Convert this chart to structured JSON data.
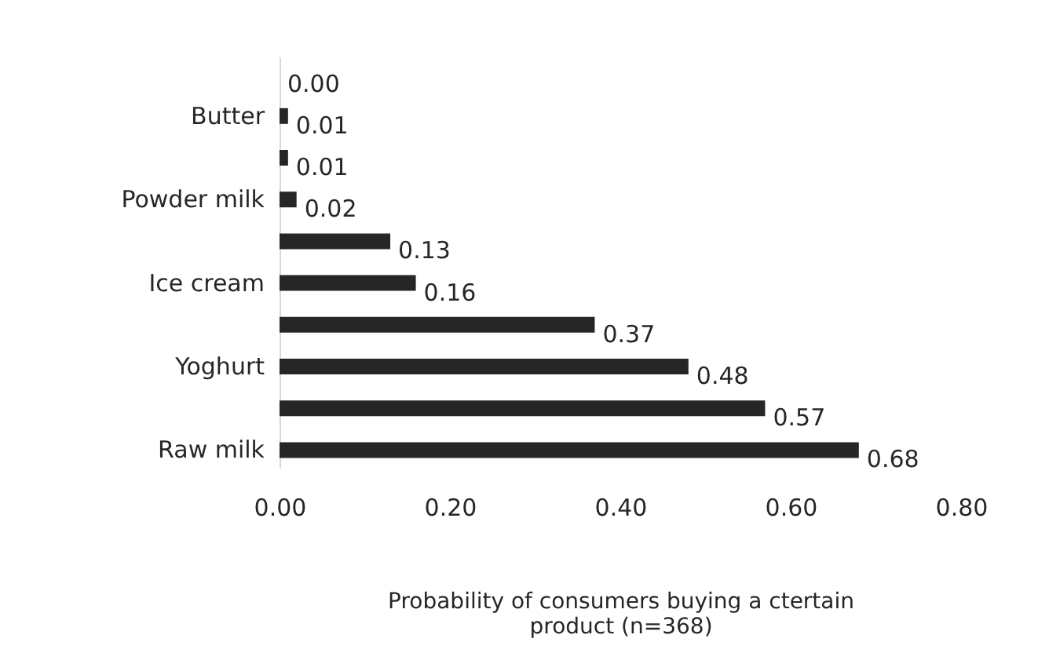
{
  "chart_data": {
    "type": "bar",
    "orientation": "horizontal",
    "categories": [
      null,
      "Butter",
      null,
      "Powder milk",
      null,
      "Ice cream",
      null,
      "Yoghurt",
      null,
      "Raw milk"
    ],
    "values": [
      0.0,
      0.01,
      0.01,
      0.02,
      0.13,
      0.16,
      0.37,
      0.48,
      0.57,
      0.68
    ],
    "value_labels": [
      "0.00",
      "0.01",
      "0.01",
      "0.02",
      "0.13",
      "0.16",
      "0.37",
      "0.48",
      "0.57",
      "0.68"
    ],
    "color": "#262626",
    "xlim": [
      0,
      0.8
    ],
    "xticks": [
      {
        "value": 0,
        "label": "0.00"
      },
      {
        "value": 0.2,
        "label": "0.20"
      },
      {
        "value": 0.4,
        "label": "0.40"
      },
      {
        "value": 0.6,
        "label": "0.60"
      },
      {
        "value": 0.8,
        "label": "0.80"
      }
    ],
    "xlabel": "Probability of consumers buying a ctertain product (n=368)",
    "grid": false
  }
}
